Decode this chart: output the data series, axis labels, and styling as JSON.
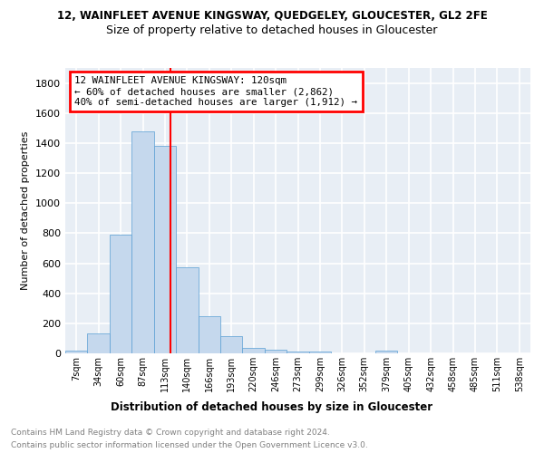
{
  "title1": "12, WAINFLEET AVENUE KINGSWAY, QUEDGELEY, GLOUCESTER, GL2 2FE",
  "title2": "Size of property relative to detached houses in Gloucester",
  "xlabel": "Distribution of detached houses by size in Gloucester",
  "ylabel": "Number of detached properties",
  "bin_labels": [
    "7sqm",
    "34sqm",
    "60sqm",
    "87sqm",
    "113sqm",
    "140sqm",
    "166sqm",
    "193sqm",
    "220sqm",
    "246sqm",
    "273sqm",
    "299sqm",
    "326sqm",
    "352sqm",
    "379sqm",
    "405sqm",
    "432sqm",
    "458sqm",
    "485sqm",
    "511sqm",
    "538sqm"
  ],
  "bar_values": [
    20,
    135,
    790,
    1480,
    1380,
    575,
    245,
    115,
    35,
    25,
    15,
    15,
    0,
    0,
    20,
    0,
    0,
    0,
    0,
    0,
    0
  ],
  "bar_color": "#c5d8ed",
  "bar_edge_color": "#5a9fd4",
  "property_line_x": 120,
  "bin_edges_sqm": [
    7,
    34,
    60,
    87,
    113,
    140,
    166,
    193,
    220,
    246,
    273,
    299,
    326,
    352,
    379,
    405,
    432,
    458,
    485,
    511,
    538
  ],
  "annotation_text": "12 WAINFLEET AVENUE KINGSWAY: 120sqm\n← 60% of detached houses are smaller (2,862)\n40% of semi-detached houses are larger (1,912) →",
  "annotation_box_color": "white",
  "annotation_box_edge": "red",
  "red_line_color": "red",
  "footnote1": "Contains HM Land Registry data © Crown copyright and database right 2024.",
  "footnote2": "Contains public sector information licensed under the Open Government Licence v3.0.",
  "ylim": [
    0,
    1900
  ],
  "background_color": "#e8eef5",
  "grid_color": "white"
}
